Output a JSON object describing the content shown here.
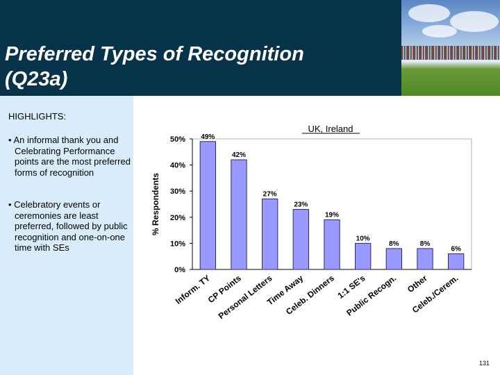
{
  "header": {
    "title": "Preferred Types of Recognition\n(Q23a)",
    "bar_color": "#06334a"
  },
  "sidebar": {
    "heading": "HIGHLIGHTS:",
    "bullets": [
      "• An informal thank you and Celebrating Performance points are the most preferred forms of recognition",
      "• Celebratory events or ceremonies are least preferred, followed by public recognition and one-on-one time with SEs"
    ],
    "background": "#d8ecfb"
  },
  "chart_data": {
    "type": "bar",
    "title": "UK, Ireland",
    "xlabel": "",
    "ylabel": "% Respondents",
    "categories": [
      "Inform. TY",
      "CP Points",
      "Personal Letters",
      "Time Away",
      "Celeb. Dinners",
      "1:1 SE's",
      "Public Recogn.",
      "Other",
      "Celeb./Cerem."
    ],
    "values": [
      49,
      42,
      27,
      23,
      19,
      10,
      8,
      8,
      6
    ],
    "data_labels": [
      "49%",
      "42%",
      "27%",
      "23%",
      "19%",
      "10%",
      "8%",
      "8%",
      "6%"
    ],
    "ylim": [
      0,
      50
    ],
    "yticks": [
      0,
      10,
      20,
      30,
      40,
      50
    ],
    "ytick_labels": [
      "0%",
      "10%",
      "20%",
      "30%",
      "40%",
      "50%"
    ],
    "grid": false,
    "legend": "none",
    "bar_color": "#9999ff",
    "bar_edge": "#2a2a6a"
  },
  "footer": {
    "page_number": "131"
  }
}
